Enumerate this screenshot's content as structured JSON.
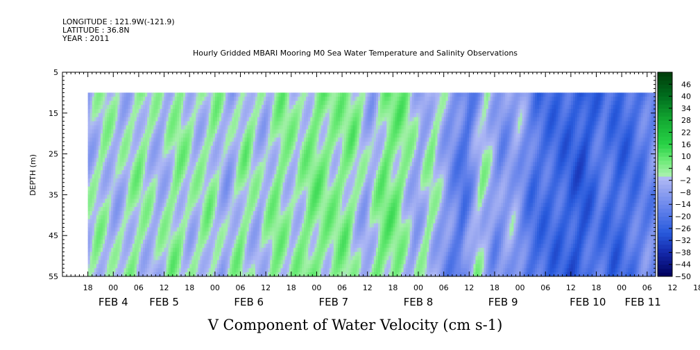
{
  "header": {
    "longitude": "LONGITUDE : 121.9W(-121.9)",
    "latitude": "LATITUDE : 36.8N",
    "year": "YEAR : 2011"
  },
  "chart_data": {
    "type": "heatmap",
    "title": "Hourly Gridded MBARI Mooring M0 Sea Water Temperature and Salinity Observations",
    "xlabel": "V Component of Water Velocity (cm s-1)",
    "ylabel": "DEPTH (m)",
    "y_axis": {
      "range": [
        5,
        55
      ],
      "inverted": true,
      "tick_labels": [
        "5",
        "15",
        "25",
        "35",
        "45",
        "55"
      ],
      "data_top": 10
    },
    "x_axis": {
      "units": "hours since 2011-02-03 12:00",
      "range_hours": [
        0,
        140
      ],
      "data_start_hours": 6,
      "hour_labels": [
        "18",
        "00",
        "06",
        "12",
        "18",
        "00",
        "06",
        "12",
        "18",
        "00",
        "06",
        "12",
        "18",
        "00",
        "06",
        "12",
        "18",
        "00",
        "06",
        "12",
        "18",
        "00",
        "06",
        "12",
        "18",
        "00",
        "06",
        "12",
        "18",
        "00",
        "06",
        "12",
        "18",
        "00",
        "06",
        "12"
      ],
      "date_labels": [
        {
          "text": "FEB  4",
          "hour": 12
        },
        {
          "text": "FEB  5",
          "hour": 24
        },
        {
          "text": "FEB  6",
          "hour": 44
        },
        {
          "text": "FEB  7",
          "hour": 64
        },
        {
          "text": "FEB  8",
          "hour": 84
        },
        {
          "text": "FEB  9",
          "hour": 104
        },
        {
          "text": "FEB 10",
          "hour": 124
        },
        {
          "text": "FEB 11",
          "hour": 137
        }
      ]
    },
    "colorbar": {
      "levels": [
        46,
        40,
        34,
        28,
        22,
        16,
        10,
        4,
        -2,
        -8,
        -14,
        -20,
        -26,
        -32,
        -38,
        -44,
        -50
      ],
      "min": -50,
      "max": 52,
      "step": 2
    },
    "field_profile": [
      {
        "hour": 6,
        "v": -6
      },
      {
        "hour": 10,
        "v": 2
      },
      {
        "hour": 14,
        "v": -4
      },
      {
        "hour": 19,
        "v": 3
      },
      {
        "hour": 24,
        "v": -4
      },
      {
        "hour": 28,
        "v": 4
      },
      {
        "hour": 32,
        "v": -2
      },
      {
        "hour": 36,
        "v": 3
      },
      {
        "hour": 40,
        "v": -6
      },
      {
        "hour": 44,
        "v": 4
      },
      {
        "hour": 48,
        "v": -4
      },
      {
        "hour": 52,
        "v": 5
      },
      {
        "hour": 56,
        "v": -1
      },
      {
        "hour": 60,
        "v": 6
      },
      {
        "hour": 65,
        "v": 3
      },
      {
        "hour": 69,
        "v": 5
      },
      {
        "hour": 73,
        "v": -6
      },
      {
        "hour": 77,
        "v": 7
      },
      {
        "hour": 81,
        "v": 5
      },
      {
        "hour": 85,
        "v": -7
      },
      {
        "hour": 88,
        "v": 3
      },
      {
        "hour": 92,
        "v": -10
      },
      {
        "hour": 96,
        "v": -20
      },
      {
        "hour": 100,
        "v": 2
      },
      {
        "hour": 104,
        "v": -12
      },
      {
        "hour": 108,
        "v": -6
      },
      {
        "hour": 112,
        "v": -20
      },
      {
        "hour": 116,
        "v": -22
      },
      {
        "hour": 120,
        "v": -24
      },
      {
        "hour": 124,
        "v": -28
      },
      {
        "hour": 128,
        "v": -18
      },
      {
        "hour": 132,
        "v": -24
      },
      {
        "hour": 136,
        "v": -20
      },
      {
        "hour": 140,
        "v": -14
      }
    ]
  }
}
